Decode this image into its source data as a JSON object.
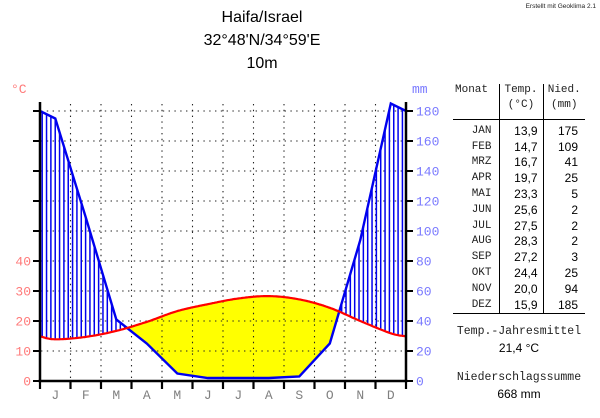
{
  "credit": "Erstellt mit Geoklima 2.1",
  "title": {
    "station": "Haifa/Israel",
    "coordinates": "32°48'N/34°59'E",
    "elevation": "10m"
  },
  "chart_data": {
    "type": "line",
    "title": "Haifa/Israel climate diagram (Walter-Lieth)",
    "month_letters": [
      "J",
      "F",
      "M",
      "A",
      "M",
      "J",
      "J",
      "A",
      "S",
      "O",
      "N",
      "D"
    ],
    "series": [
      {
        "name": "Temperatur",
        "unit": "°C",
        "values": [
          13.9,
          14.7,
          16.7,
          19.7,
          23.3,
          25.6,
          27.5,
          28.3,
          27.2,
          24.4,
          20.0,
          15.9
        ]
      },
      {
        "name": "Niederschlag",
        "unit": "mm",
        "values": [
          175,
          109,
          41,
          25,
          5,
          2,
          2,
          2,
          3,
          25,
          94,
          185
        ]
      }
    ],
    "mm_per_degC": 2,
    "left_axis": {
      "unit": "°C",
      "labeled_ticks": [
        0,
        10,
        20,
        30,
        40
      ],
      "tick_step_deg": 10,
      "tick_max_deg": 90
    },
    "right_axis": {
      "unit": "mm",
      "labeled_ticks": [
        0,
        20,
        40,
        60,
        80,
        100,
        120,
        140,
        160,
        180
      ],
      "tick_step_mm": 20,
      "tick_max_mm": 180
    },
    "ylim_mm": [
      0,
      186
    ],
    "grid": true,
    "colors": {
      "temp": "#ff0000",
      "precip": "#0000ee",
      "dry_fill": "#ffff00",
      "left_axis": "#ff7a7a",
      "right_axis": "#7a7aff",
      "months": "#808080",
      "grid": "#222222",
      "axis": "#000000"
    }
  },
  "table": {
    "headers": {
      "monat": "Monat",
      "temp": "Temp.",
      "nied": "Nied.",
      "temp_unit": "(°C)",
      "nied_unit": "(mm)"
    },
    "rows": [
      {
        "monat": "JAN",
        "temp": "13,9",
        "nied": "175"
      },
      {
        "monat": "FEB",
        "temp": "14,7",
        "nied": "109"
      },
      {
        "monat": "MRZ",
        "temp": "16,7",
        "nied": "41"
      },
      {
        "monat": "APR",
        "temp": "19,7",
        "nied": "25"
      },
      {
        "monat": "MAI",
        "temp": "23,3",
        "nied": "5"
      },
      {
        "monat": "JUN",
        "temp": "25,6",
        "nied": "2"
      },
      {
        "monat": "JUL",
        "temp": "27,5",
        "nied": "2"
      },
      {
        "monat": "AUG",
        "temp": "28,3",
        "nied": "2"
      },
      {
        "monat": "SEP",
        "temp": "27,2",
        "nied": "3"
      },
      {
        "monat": "OKT",
        "temp": "24,4",
        "nied": "25"
      },
      {
        "monat": "NOV",
        "temp": "20,0",
        "nied": "94"
      },
      {
        "monat": "DEZ",
        "temp": "15,9",
        "nied": "185"
      }
    ],
    "summary": [
      {
        "label": "Temp.-Jahresmittel",
        "value": "21,4 °C"
      },
      {
        "label": "Niederschlagssumme",
        "value": "668 mm"
      }
    ]
  }
}
